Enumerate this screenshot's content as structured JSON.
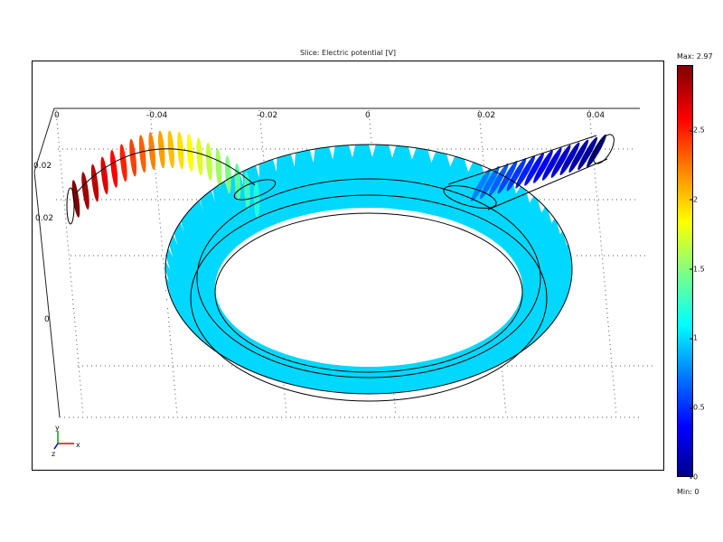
{
  "chart_data": {
    "type": "3d-slice-plot",
    "title": "Slice: Electric potential [V]",
    "x_ticks": [
      "-0.04",
      "-0.02",
      "0",
      "0.02",
      "0.04"
    ],
    "x_ticks_back": [
      "0"
    ],
    "y_ticks": [
      "0.02",
      "0.02",
      "0"
    ],
    "colorbar": {
      "colormap": "jet",
      "max_label": "Max: 2.97",
      "min_label": "Min: 0",
      "max": 2.97,
      "min": 0,
      "ticks": [
        "2.5",
        "2",
        "1.5",
        "1",
        "0.5",
        "0"
      ],
      "tick_values": [
        2.5,
        2,
        1.5,
        1,
        0.5,
        0
      ]
    },
    "ring_potential": 1.0,
    "left_lead_potential_range": [
      2.97,
      1.2
    ],
    "right_lead_potential_range": [
      0.75,
      0.02
    ],
    "axes_triad": {
      "x": "x",
      "y": "y",
      "z": "z"
    }
  }
}
